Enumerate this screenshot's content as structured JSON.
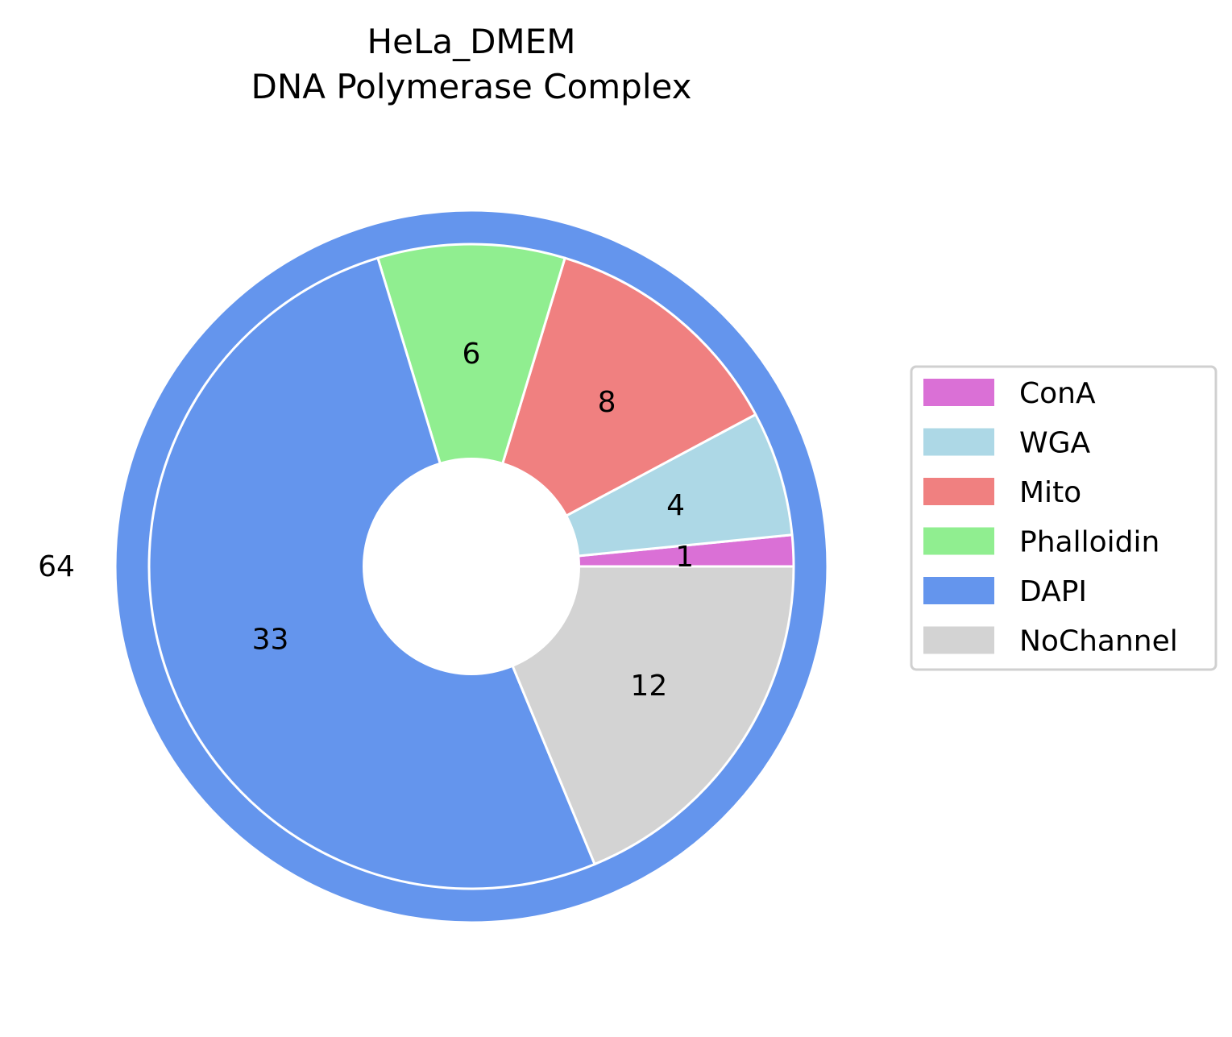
{
  "chart_data": {
    "type": "pie",
    "title": "HeLa_DMEM",
    "subtitle": "DNA Polymerase Complex",
    "outer_ring": {
      "label": "64",
      "value": 64,
      "color": "#6495ED"
    },
    "slices": [
      {
        "name": "ConA",
        "value": 1,
        "color": "#DA70D6"
      },
      {
        "name": "WGA",
        "value": 4,
        "color": "#ADD8E6"
      },
      {
        "name": "Mito",
        "value": 8,
        "color": "#F08080"
      },
      {
        "name": "Phalloidin",
        "value": 6,
        "color": "#90EE90"
      },
      {
        "name": "DAPI",
        "value": 33,
        "color": "#6495ED"
      },
      {
        "name": "NoChannel",
        "value": 12,
        "color": "#D3D3D3"
      }
    ],
    "legend_position": "right",
    "legend": [
      "ConA",
      "WGA",
      "Mito",
      "Phalloidin",
      "DAPI",
      "NoChannel"
    ]
  }
}
